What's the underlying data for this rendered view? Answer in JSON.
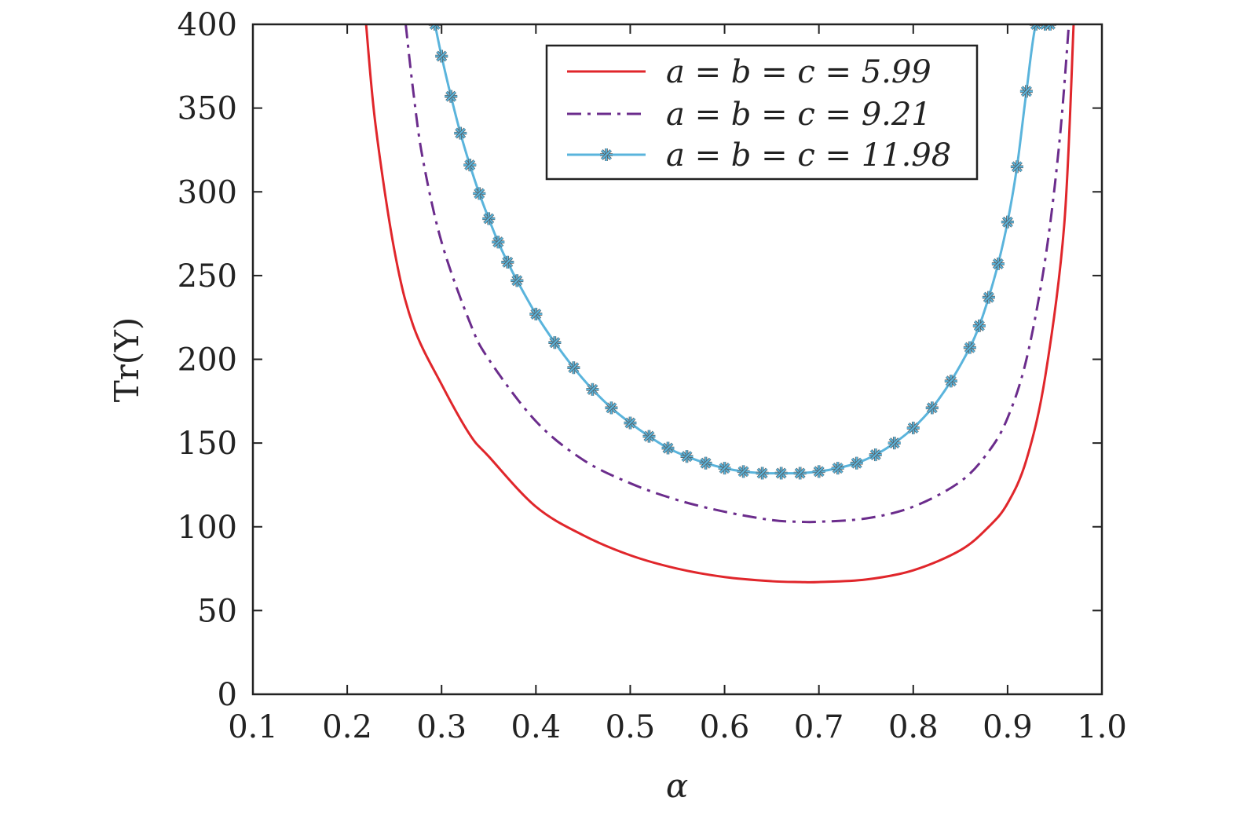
{
  "chart_data": {
    "type": "line",
    "title": "",
    "xlabel": "α",
    "ylabel": "Tr(Y)",
    "xlim": [
      0.1,
      1.0
    ],
    "ylim": [
      0,
      400
    ],
    "xticks": [
      0.1,
      0.2,
      0.3,
      0.4,
      0.5,
      0.6,
      0.7,
      0.8,
      0.9,
      1.0
    ],
    "xtick_labels": [
      "0.1",
      "0.2",
      "0.3",
      "0.4",
      "0.5",
      "0.6",
      "0.7",
      "0.8",
      "0.9",
      "1.0"
    ],
    "yticks": [
      0,
      50,
      100,
      150,
      200,
      250,
      300,
      350,
      400
    ],
    "ytick_labels": [
      "0",
      "50",
      "100",
      "150",
      "200",
      "250",
      "300",
      "350",
      "400"
    ],
    "legend_position": "top-right",
    "series": [
      {
        "name": "a = b = c = 5.99",
        "color": "#e0262b",
        "style": "solid",
        "marker": "none",
        "x": [
          0.22,
          0.23,
          0.25,
          0.27,
          0.3,
          0.33,
          0.35,
          0.4,
          0.45,
          0.5,
          0.55,
          0.6,
          0.65,
          0.68,
          0.7,
          0.75,
          0.8,
          0.85,
          0.88,
          0.9,
          0.92,
          0.94,
          0.96,
          0.97
        ],
        "values": [
          400,
          340,
          265,
          220,
          185,
          155,
          142,
          112,
          95,
          83,
          75,
          70,
          67.5,
          67,
          67,
          68.5,
          74,
          86,
          100,
          114,
          140,
          190,
          280,
          400
        ]
      },
      {
        "name": "a = b = c = 9.21",
        "color": "#6b2c8c",
        "style": "dashdot",
        "marker": "none",
        "x": [
          0.262,
          0.27,
          0.28,
          0.3,
          0.33,
          0.35,
          0.4,
          0.45,
          0.5,
          0.55,
          0.6,
          0.65,
          0.68,
          0.7,
          0.75,
          0.8,
          0.85,
          0.88,
          0.9,
          0.92,
          0.94,
          0.955,
          0.965
        ],
        "values": [
          400,
          360,
          320,
          270,
          222,
          200,
          163,
          140,
          126,
          116,
          109,
          104,
          103,
          103,
          105,
          112,
          127,
          145,
          165,
          200,
          260,
          330,
          400
        ]
      },
      {
        "name": "a = b = c = 11.98",
        "color": "#5ab4dc",
        "style": "solid",
        "marker": "asterisk",
        "x": [
          0.293,
          0.3,
          0.31,
          0.32,
          0.33,
          0.34,
          0.35,
          0.36,
          0.37,
          0.38,
          0.4,
          0.42,
          0.44,
          0.46,
          0.48,
          0.5,
          0.52,
          0.54,
          0.56,
          0.58,
          0.6,
          0.62,
          0.64,
          0.66,
          0.68,
          0.7,
          0.72,
          0.74,
          0.76,
          0.78,
          0.8,
          0.82,
          0.84,
          0.86,
          0.87,
          0.88,
          0.89,
          0.9,
          0.91,
          0.92,
          0.93,
          0.94,
          0.945
        ],
        "values": [
          400,
          381,
          357,
          335,
          316,
          299,
          284,
          270,
          258,
          247,
          227,
          210,
          195,
          182,
          171,
          162,
          154,
          147,
          142,
          138,
          135,
          133,
          132,
          132,
          132,
          133,
          135,
          138,
          143,
          150,
          159,
          171,
          187,
          207,
          220,
          237,
          257,
          282,
          315,
          360,
          400,
          400,
          400
        ]
      }
    ]
  }
}
